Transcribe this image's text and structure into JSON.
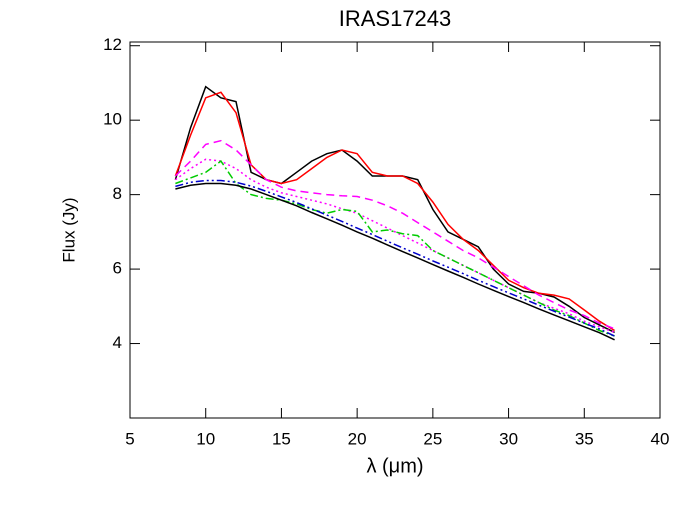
{
  "chart_data": {
    "type": "line",
    "title": "IRAS17243",
    "x_label": "λ (μm)",
    "y_label": "Flux (Jy)",
    "x": [
      8,
      9,
      10,
      11,
      12,
      13,
      14,
      15,
      16,
      17,
      18,
      19,
      20,
      21,
      22,
      23,
      24,
      25,
      26,
      27,
      28,
      29,
      30,
      31,
      32,
      33,
      34,
      35,
      36,
      37
    ],
    "series": [
      {
        "color": "#000000",
        "dash": "solid",
        "values": [
          8.4,
          9.8,
          10.9,
          10.6,
          10.5,
          8.6,
          8.4,
          8.3,
          8.6,
          8.9,
          9.1,
          9.2,
          8.9,
          8.5,
          8.5,
          8.5,
          8.4,
          7.6,
          7.0,
          6.8,
          6.6,
          6.0,
          5.6,
          5.4,
          5.35,
          5.25,
          5.0,
          4.7,
          4.5,
          4.3
        ]
      },
      {
        "color": "#ff0000",
        "dash": "solid",
        "values": [
          8.5,
          9.6,
          10.6,
          10.75,
          10.2,
          8.8,
          8.4,
          8.3,
          8.4,
          8.7,
          9.0,
          9.2,
          9.1,
          8.6,
          8.5,
          8.5,
          8.3,
          7.8,
          7.2,
          6.8,
          6.5,
          6.1,
          5.7,
          5.5,
          5.35,
          5.3,
          5.2,
          4.9,
          4.6,
          4.35
        ]
      },
      {
        "color": "#ff00ff",
        "dash": "dashed",
        "values": [
          8.5,
          8.9,
          9.35,
          9.45,
          9.2,
          8.8,
          8.4,
          8.2,
          8.1,
          8.05,
          8.0,
          7.97,
          7.95,
          7.85,
          7.7,
          7.5,
          7.25,
          7.0,
          6.75,
          6.5,
          6.3,
          6.05,
          5.8,
          5.55,
          5.3,
          5.1,
          4.9,
          4.75,
          4.55,
          4.4
        ]
      },
      {
        "color": "#ff00ff",
        "dash": "dotted",
        "values": [
          8.4,
          8.7,
          8.95,
          8.9,
          8.7,
          8.4,
          8.2,
          8.05,
          7.95,
          7.85,
          7.75,
          7.62,
          7.5,
          7.3,
          7.1,
          6.9,
          6.7,
          6.5,
          6.3,
          6.1,
          5.9,
          5.7,
          5.5,
          5.3,
          5.1,
          4.95,
          4.8,
          4.6,
          4.45,
          4.3
        ]
      },
      {
        "color": "#00cc00",
        "dash": "dashdot",
        "values": [
          8.3,
          8.45,
          8.6,
          8.9,
          8.3,
          8.0,
          7.9,
          7.85,
          7.75,
          7.6,
          7.5,
          7.6,
          7.55,
          7.0,
          7.05,
          6.95,
          6.9,
          6.5,
          6.3,
          6.1,
          5.9,
          5.7,
          5.5,
          5.3,
          5.1,
          4.9,
          4.75,
          4.55,
          4.35,
          4.2
        ]
      },
      {
        "color": "#0000cc",
        "dash": "dashdotdot",
        "values": [
          8.22,
          8.33,
          8.38,
          8.38,
          8.33,
          8.23,
          8.09,
          7.94,
          7.79,
          7.62,
          7.45,
          7.28,
          7.1,
          6.93,
          6.75,
          6.57,
          6.4,
          6.22,
          6.05,
          5.88,
          5.7,
          5.53,
          5.36,
          5.2,
          5.03,
          4.87,
          4.71,
          4.55,
          4.39,
          4.2
        ]
      },
      {
        "color": "#000000",
        "dash": "solid",
        "values": [
          8.15,
          8.25,
          8.3,
          8.3,
          8.25,
          8.15,
          8.0,
          7.85,
          7.7,
          7.52,
          7.35,
          7.18,
          7.0,
          6.83,
          6.65,
          6.47,
          6.3,
          6.12,
          5.95,
          5.78,
          5.6,
          5.43,
          5.26,
          5.1,
          4.93,
          4.77,
          4.61,
          4.45,
          4.29,
          4.1
        ]
      }
    ],
    "xlim": [
      5,
      40
    ],
    "xticks": [
      5,
      10,
      15,
      20,
      25,
      30,
      35,
      40
    ],
    "ylim": [
      2,
      12.1
    ],
    "yticks": [
      4,
      6,
      8,
      10,
      12
    ]
  }
}
